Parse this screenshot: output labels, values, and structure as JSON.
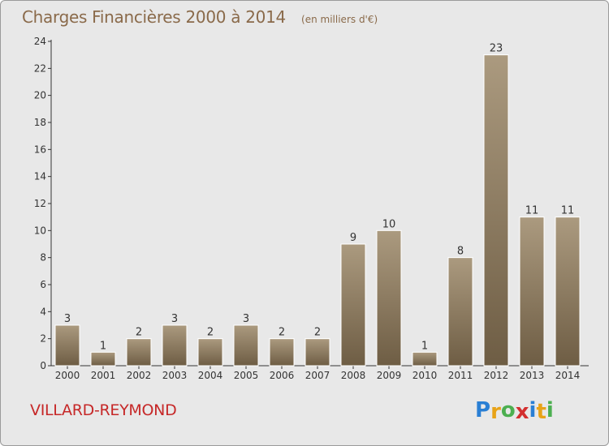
{
  "header": {
    "title": "Charges Financières 2000 à 2014",
    "unit": "(en milliers d'€)"
  },
  "footer": {
    "commune": "VILLARD-REYMOND",
    "logo": [
      "P",
      "r",
      "o",
      "x",
      "i",
      "t",
      "i"
    ],
    "logo_colors": [
      "#2a7fd4",
      "#e8a317",
      "#4caf50",
      "#d32f2f",
      "#2a7fd4",
      "#e8a317",
      "#4caf50"
    ]
  },
  "colors": {
    "bar_light": "#ab9a7f",
    "bar_dark": "#6e5d44",
    "axis": "#333333",
    "background": "#e8e8e8",
    "title": "#8a6a4a",
    "commune": "#c62828"
  },
  "chart_data": {
    "type": "bar",
    "title": "Charges Financières 2000 à 2014",
    "subtitle": "(en milliers d'€)",
    "categories": [
      "2000",
      "2001",
      "2002",
      "2003",
      "2004",
      "2005",
      "2006",
      "2007",
      "2008",
      "2009",
      "2010",
      "2011",
      "2012",
      "2013",
      "2014"
    ],
    "values": [
      3,
      1,
      2,
      3,
      2,
      3,
      2,
      2,
      9,
      10,
      1,
      8,
      23,
      11,
      11
    ],
    "ylim": [
      0,
      24
    ],
    "yticks": [
      0,
      2,
      4,
      6,
      8,
      10,
      12,
      14,
      16,
      18,
      20,
      22,
      24
    ],
    "grid": false,
    "legend": "none"
  }
}
